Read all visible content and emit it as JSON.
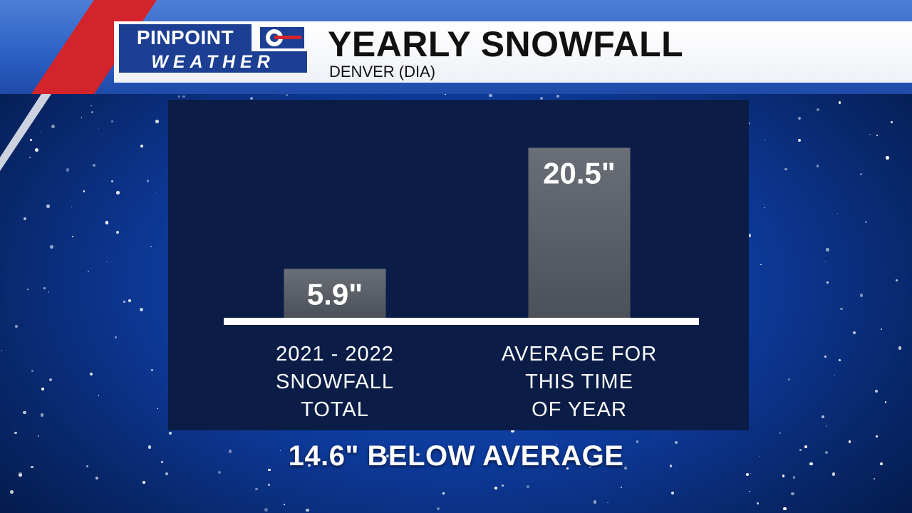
{
  "logo": {
    "line1": "PINPOINT",
    "line2": "WEATHER",
    "brand_color": "#1c3f93",
    "accent_color": "#d3242b"
  },
  "header": {
    "title": "YEARLY SNOWFALL",
    "subtitle": "DENVER (DIA)"
  },
  "chart_data": {
    "type": "bar",
    "categories": [
      "2021 - 2022\nSNOWFALL\nTOTAL",
      "AVERAGE FOR\nTHIS TIME\nOF YEAR"
    ],
    "values": [
      5.9,
      20.5
    ],
    "value_labels": [
      "5.9\"",
      "20.5\""
    ],
    "unit": "inches",
    "title": "YEARLY SNOWFALL",
    "subtitle": "DENVER (DIA)",
    "xlabel": "",
    "ylabel": "",
    "ylim": [
      0,
      22
    ],
    "grid": false,
    "bar_color": "#5a5f66",
    "baseline_color": "#ffffff",
    "panel_color": "#0b1d47"
  },
  "footer": {
    "text": "14.6\" BELOW AVERAGE"
  }
}
